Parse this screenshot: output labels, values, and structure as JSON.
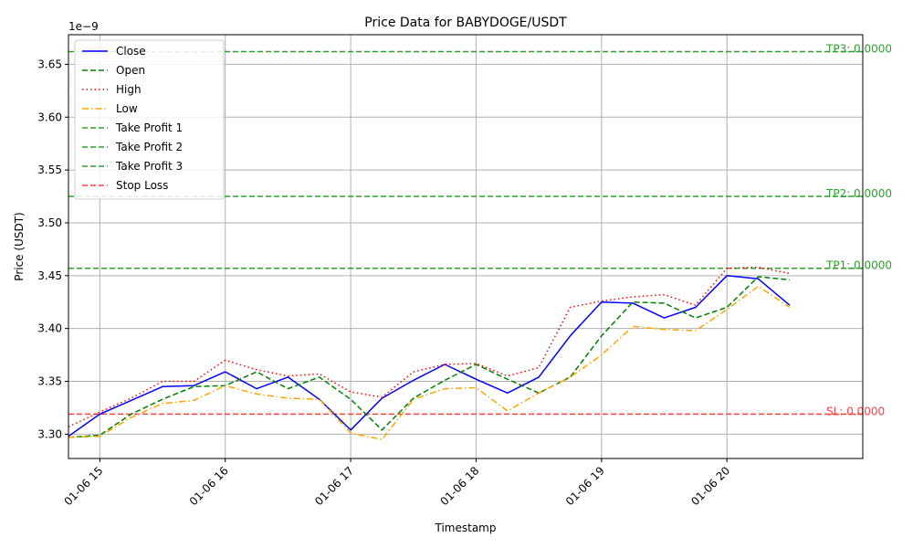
{
  "chart_data": {
    "type": "line",
    "title": "Price Data for BABYDOGE/USDT",
    "xlabel": "Timestamp",
    "ylabel": "Price (USDT)",
    "y_offset_label": "1e−9",
    "y_unit_scale": 1e-09,
    "ylim": [
      3.277,
      3.678
    ],
    "xlim": [
      "01-06 14:45",
      "01-06 21:05"
    ],
    "grid": true,
    "legend_position": "upper-left",
    "x_tick_labels": [
      "01-06 15",
      "01-06 16",
      "01-06 17",
      "01-06 18",
      "01-06 19",
      "01-06 20"
    ],
    "x_tick_times": [
      "01-06 15:00",
      "01-06 16:00",
      "01-06 17:00",
      "01-06 18:00",
      "01-06 19:00",
      "01-06 20:00"
    ],
    "y_ticks": [
      3.3,
      3.35,
      3.4,
      3.45,
      3.5,
      3.55,
      3.6,
      3.65
    ],
    "y_tick_labels": [
      "3.30",
      "3.35",
      "3.40",
      "3.45",
      "3.50",
      "3.55",
      "3.60",
      "3.65"
    ],
    "x": [
      "01-06 14:45",
      "01-06 15:00",
      "01-06 15:15",
      "01-06 15:30",
      "01-06 15:45",
      "01-06 16:00",
      "01-06 16:15",
      "01-06 16:30",
      "01-06 16:45",
      "01-06 17:00",
      "01-06 17:15",
      "01-06 17:30",
      "01-06 17:45",
      "01-06 18:00",
      "01-06 18:15",
      "01-06 18:30",
      "01-06 18:45",
      "01-06 19:00",
      "01-06 19:15",
      "01-06 19:30",
      "01-06 19:45",
      "01-06 20:00",
      "01-06 20:15",
      "01-06 20:30"
    ],
    "series": [
      {
        "name": "Close",
        "color": "#0000ff",
        "dash": "solid",
        "values": [
          3.298,
          3.319,
          3.332,
          3.345,
          3.346,
          3.359,
          3.343,
          3.354,
          3.333,
          3.304,
          3.334,
          3.351,
          3.366,
          3.352,
          3.339,
          3.354,
          3.393,
          3.425,
          3.424,
          3.41,
          3.42,
          3.45,
          3.447,
          3.422
        ]
      },
      {
        "name": "Open",
        "color": "#008000",
        "dash": "dashed",
        "values": [
          3.297,
          3.299,
          3.319,
          3.333,
          3.345,
          3.346,
          3.359,
          3.343,
          3.354,
          3.333,
          3.304,
          3.334,
          3.351,
          3.366,
          3.352,
          3.339,
          3.354,
          3.393,
          3.425,
          3.424,
          3.41,
          3.42,
          3.449,
          3.446
        ]
      },
      {
        "name": "High",
        "color": "#ff0000",
        "dash": "dotted",
        "values": [
          3.307,
          3.321,
          3.334,
          3.35,
          3.35,
          3.37,
          3.361,
          3.355,
          3.357,
          3.34,
          3.335,
          3.359,
          3.366,
          3.367,
          3.355,
          3.363,
          3.42,
          3.426,
          3.43,
          3.432,
          3.422,
          3.457,
          3.458,
          3.452
        ]
      },
      {
        "name": "Low",
        "color": "#ffa500",
        "dash": "dashdot",
        "values": [
          3.297,
          3.298,
          3.316,
          3.329,
          3.332,
          3.346,
          3.338,
          3.334,
          3.333,
          3.301,
          3.295,
          3.333,
          3.343,
          3.344,
          3.322,
          3.339,
          3.354,
          3.375,
          3.402,
          3.399,
          3.398,
          3.418,
          3.44,
          3.42
        ]
      }
    ],
    "reference_lines": [
      {
        "name": "Take Profit 1",
        "value": 3.457,
        "color": "#2ca02c",
        "label": "TP1: 0.0000"
      },
      {
        "name": "Take Profit 2",
        "value": 3.525,
        "color": "#2ca02c",
        "label": "TP2: 0.0000"
      },
      {
        "name": "Take Profit 3",
        "value": 3.662,
        "color": "#2ca02c",
        "label": "TP3: 0.0000"
      },
      {
        "name": "Stop Loss",
        "value": 3.319,
        "color": "#ff4040",
        "label": "SL: 0.0000"
      }
    ],
    "legend": [
      "Close",
      "Open",
      "High",
      "Low",
      "Take Profit 1",
      "Take Profit 2",
      "Take Profit 3",
      "Stop Loss"
    ]
  }
}
